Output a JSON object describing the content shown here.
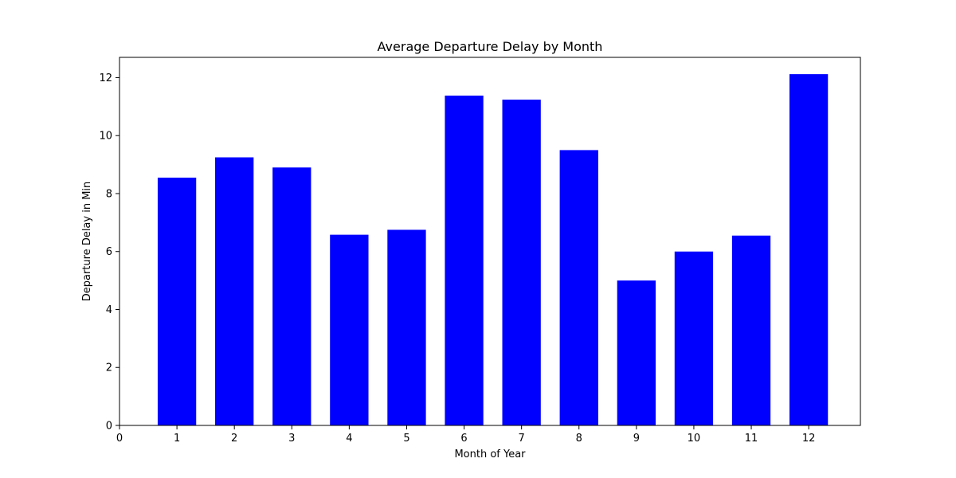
{
  "chart_data": {
    "type": "bar",
    "title": "Average Departure Delay by Month",
    "xlabel": "Month of Year",
    "ylabel": "Departure Delay in Min",
    "x": [
      1,
      2,
      3,
      4,
      5,
      6,
      7,
      8,
      9,
      10,
      11,
      12
    ],
    "values": [
      8.55,
      9.25,
      8.9,
      6.58,
      6.75,
      11.38,
      11.24,
      9.5,
      5.0,
      6.0,
      6.55,
      12.12
    ],
    "xlim": [
      0,
      12.9
    ],
    "ylim": [
      0,
      12.7
    ],
    "xticks": [
      0,
      1,
      2,
      3,
      4,
      5,
      6,
      7,
      8,
      9,
      10,
      11,
      12
    ],
    "yticks": [
      0,
      2,
      4,
      6,
      8,
      10,
      12
    ],
    "bar_width": 0.67,
    "bar_color": "#0000ff",
    "grid": false
  }
}
